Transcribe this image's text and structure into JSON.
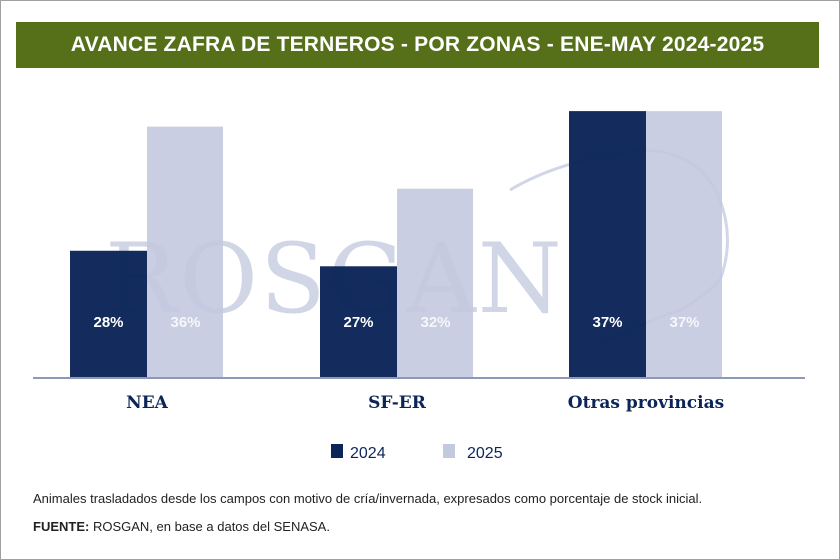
{
  "header": {
    "title": "AVANCE ZAFRA DE TERNEROS - POR ZONAS - ENE-MAY 2024-2025"
  },
  "watermark": {
    "text": "ROSGAN"
  },
  "colors": {
    "header_bg": "#56701a",
    "series_2024": "#0b2558",
    "series_2025": "#c3c9df",
    "text": "#0b2558"
  },
  "chart_data": {
    "type": "bar",
    "title": "AVANCE ZAFRA DE TERNEROS - POR ZONAS - ENE-MAY 2024-2025",
    "categories": [
      "NEA",
      "SF-ER",
      "Otras provincias"
    ],
    "series": [
      {
        "name": "2024",
        "values": [
          28,
          27,
          37
        ],
        "labels": [
          "28%",
          "27%",
          "37%"
        ],
        "color": "#0b2558"
      },
      {
        "name": "2025",
        "values": [
          36,
          32,
          37
        ],
        "labels": [
          "36%",
          "32%",
          "37%"
        ],
        "color": "#c3c9df"
      }
    ],
    "unit": "%",
    "ylim": [
      19.8,
      37.2
    ],
    "grid": false,
    "legend": "bottom"
  },
  "footer": {
    "note": "Animales trasladados desde los campos con motivo de cría/invernada, expresados como porcentaje de stock inicial.",
    "source_label": "FUENTE:",
    "source_text": " ROSGAN, en base a datos del SENASA."
  }
}
